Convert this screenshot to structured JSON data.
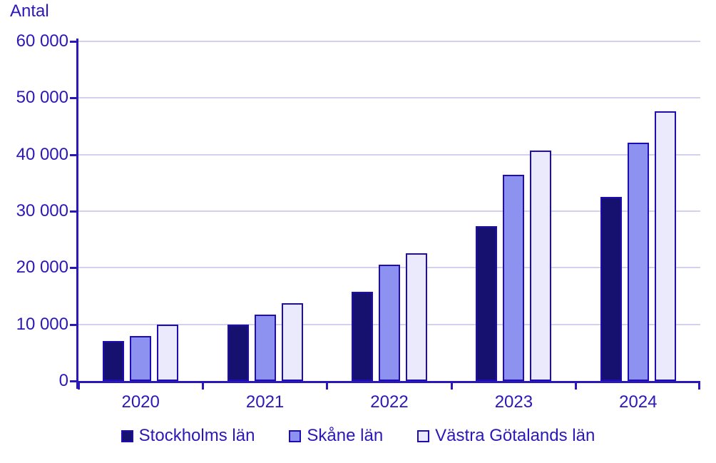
{
  "chart_data": {
    "type": "bar",
    "title": "",
    "ylabel": "Antal",
    "xlabel": "",
    "categories": [
      "2020",
      "2021",
      "2022",
      "2023",
      "2024"
    ],
    "series": [
      {
        "name": "Stockholms län",
        "color": "#16106e",
        "values": [
          7000,
          10000,
          15800,
          27300,
          32500
        ]
      },
      {
        "name": "Skåne län",
        "color": "#8d92f0",
        "values": [
          8000,
          11700,
          20500,
          36400,
          42100
        ]
      },
      {
        "name": "Västra Götalands län",
        "color": "#eaeafc",
        "values": [
          10000,
          13700,
          22600,
          40700,
          47700
        ]
      }
    ],
    "ylim": [
      0,
      60000
    ],
    "ytick_step": 10000,
    "ytick_labels": [
      "0",
      "10 000",
      "20 000",
      "30 000",
      "40 000",
      "50 000",
      "60 000"
    ],
    "grid": true,
    "legend_position": "bottom",
    "colors": {
      "text": "#2a18b8",
      "axis": "#2a18b8",
      "grid": "#d2d2ef",
      "bar_border": "#1e0db3"
    }
  }
}
